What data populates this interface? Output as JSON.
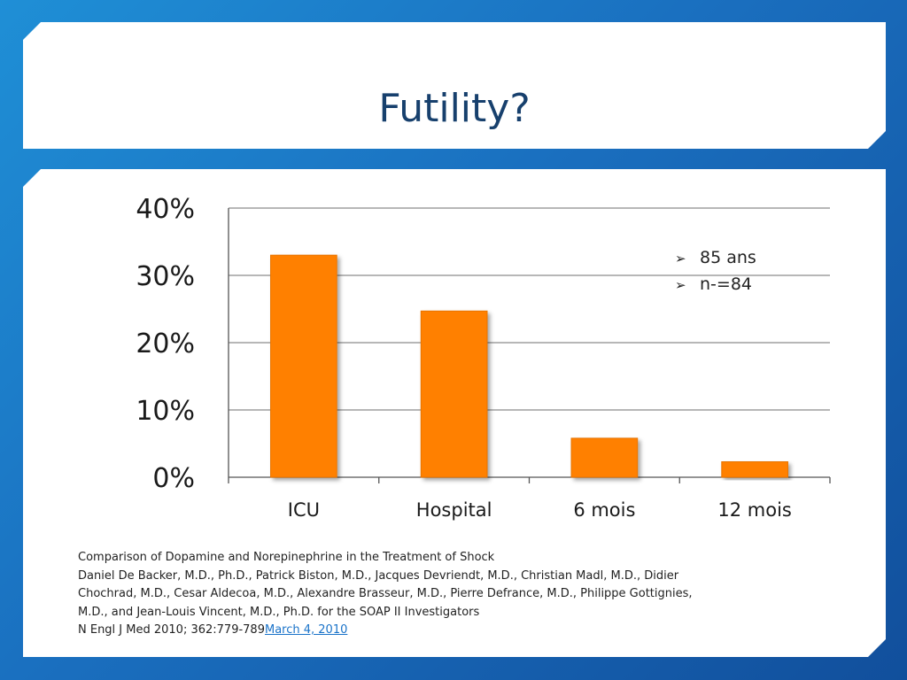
{
  "slide": {
    "title": "Futility?"
  },
  "legend": {
    "items": [
      {
        "marker": "➢",
        "text": "85 ans"
      },
      {
        "marker": "➢",
        "text": "n-=84"
      }
    ]
  },
  "citation": {
    "line1": "Comparison of Dopamine and Norepinephrine in the Treatment of Shock",
    "line2": "Daniel De Backer, M.D., Ph.D., Patrick Biston, M.D., Jacques Devriendt, M.D., Christian Madl, M.D., Didier",
    "line3": "Chochrad, M.D., Cesar Aldecoa, M.D., Alexandre Brasseur, M.D., Pierre Defrance, M.D., Philippe Gottignies,",
    "line4": "M.D., and Jean-Louis Vincent, M.D., Ph.D. for the SOAP II Investigators",
    "journal": "N Engl J Med 2010; 362:779-789",
    "date_link": "March 4, 2010"
  },
  "colors": {
    "bar": "#ff8000",
    "gridline": "#8c8c8c",
    "link": "#1a73c9"
  },
  "chart_data": {
    "type": "bar",
    "categories": [
      "ICU",
      "Hospital",
      "6 mois",
      "12 mois"
    ],
    "values": [
      33,
      24.7,
      5.8,
      2.3
    ],
    "ylim": [
      0,
      40
    ],
    "yticks": [
      0,
      10,
      20,
      30,
      40
    ],
    "ytick_labels": [
      "0%",
      "10%",
      "20%",
      "30%",
      "40%"
    ],
    "grid": true,
    "title": "",
    "xlabel": "",
    "ylabel": ""
  }
}
